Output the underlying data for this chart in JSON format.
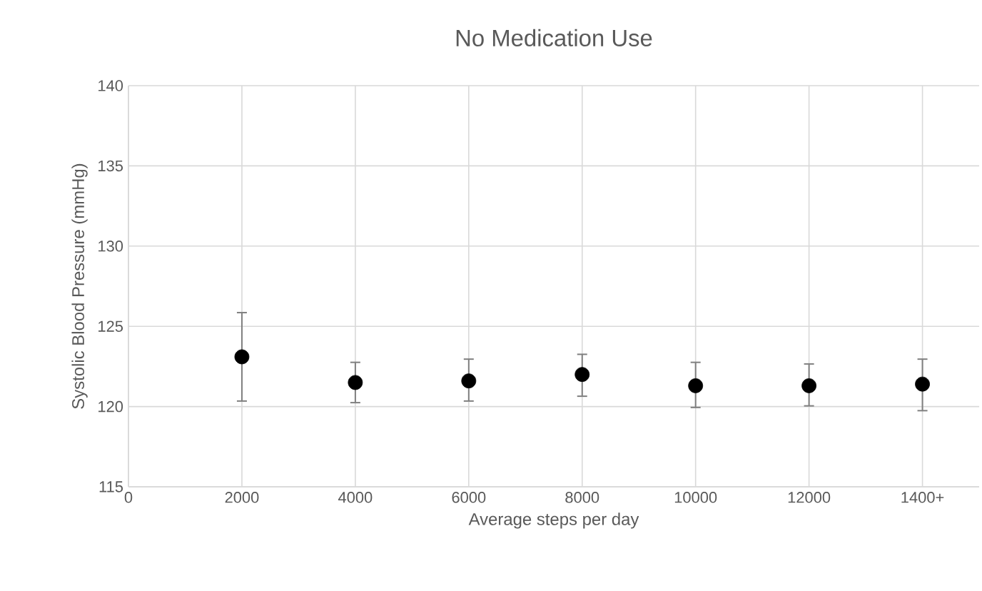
{
  "chart_data": {
    "type": "scatter",
    "title": "No Medication Use",
    "xlabel": "Average steps per day",
    "ylabel": "Systolic Blood Pressure (mmHg)",
    "x": [
      2000,
      4000,
      6000,
      8000,
      10000,
      12000,
      14000
    ],
    "series": [
      {
        "color": "#000000",
        "values": [
          123.1,
          121.5,
          121.6,
          122.0,
          121.3,
          121.3,
          121.4
        ],
        "errors": [
          [
            120.3,
            125.9
          ],
          [
            120.2,
            122.8
          ],
          [
            120.3,
            123.0
          ],
          [
            120.6,
            123.3
          ],
          [
            119.9,
            122.8
          ],
          [
            120.0,
            122.7
          ],
          [
            119.7,
            123.0
          ]
        ]
      }
    ],
    "xlim": [
      0,
      15000
    ],
    "ylim": [
      115,
      140
    ],
    "xticks": [
      0,
      2000,
      4000,
      6000,
      8000,
      10000,
      12000,
      {
        "value": 14000,
        "label": "1400+"
      }
    ],
    "yticks": [
      115,
      120,
      125,
      130,
      135,
      140
    ],
    "grid": true,
    "marker": "circle"
  }
}
